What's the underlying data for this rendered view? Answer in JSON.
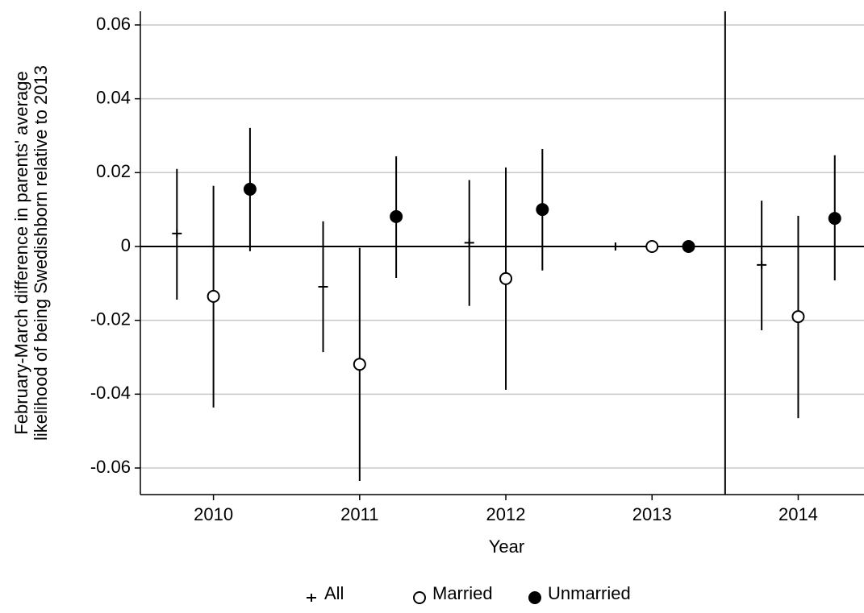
{
  "chart_data": {
    "type": "errorbar-scatter",
    "xlabel": "Year",
    "ylabel": [
      "February-March difference in parents' average",
      "likelihood of being Swedishborn relative to 2013"
    ],
    "xlim": [
      2009.5,
      2014.45
    ],
    "xticks": [
      2010,
      2011,
      2012,
      2013,
      2014
    ],
    "ylim": [
      -0.0672,
      0.0637
    ],
    "yticks": [
      0.06,
      0.04,
      0.02,
      0,
      -0.02,
      -0.04,
      -0.06
    ],
    "grid": true,
    "hline": 0,
    "vline": 2013.5,
    "legend": "bottom",
    "series": [
      {
        "name": "All",
        "color": "#000000",
        "marker": "plus",
        "x": [
          2009.75,
          2010.75,
          2011.75,
          2012.75,
          2013.75
        ],
        "values": [
          0.0035,
          -0.0109,
          0.001,
          0,
          -0.005
        ],
        "lower": [
          -0.0144,
          -0.0286,
          -0.0161,
          -0.001,
          -0.0227
        ],
        "upper": [
          0.021,
          0.0068,
          0.018,
          0.001,
          0.0124
        ]
      },
      {
        "name": "Married",
        "color": "#000000",
        "marker": "open-circle",
        "x": [
          2010,
          2011,
          2012,
          2013,
          2014
        ],
        "values": [
          -0.0135,
          -0.0319,
          -0.0087,
          0,
          -0.019
        ],
        "lower": [
          -0.0436,
          -0.0635,
          -0.0388,
          null,
          -0.0465
        ],
        "upper": [
          0.0164,
          -0.0004,
          0.0214,
          null,
          0.0083
        ]
      },
      {
        "name": "Unmarried",
        "color": "#000000",
        "marker": "filled-circle",
        "x": [
          2010.25,
          2011.25,
          2012.25,
          2013.25,
          2014.25
        ],
        "values": [
          0.0155,
          0.0081,
          0.01,
          0,
          0.0076
        ],
        "lower": [
          -0.0013,
          -0.0085,
          -0.0065,
          null,
          -0.0092
        ],
        "upper": [
          0.0321,
          0.0244,
          0.0264,
          null,
          0.0247
        ]
      }
    ]
  }
}
